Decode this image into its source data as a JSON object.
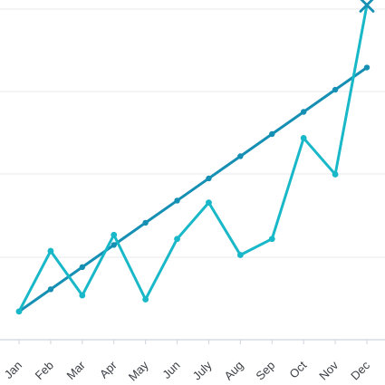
{
  "chart_data": {
    "type": "line",
    "categories": [
      "Jan",
      "Feb",
      "Mar",
      "Apr",
      "May",
      "Jun",
      "July",
      "Aug",
      "Sep",
      "Oct",
      "Nov",
      "Dec"
    ],
    "series": [
      {
        "values": [
          5,
          20,
          9,
          24,
          8,
          23,
          32,
          19,
          23,
          48,
          39,
          81
        ],
        "color": "#18b8c8",
        "marker": "circle",
        "last_marker": "x"
      },
      {
        "values": [
          5,
          10.5,
          16,
          21.5,
          27,
          32.5,
          38,
          43.5,
          49,
          54.5,
          60,
          65.5
        ],
        "color": "#158fb3",
        "marker": "circle"
      }
    ],
    "title": "",
    "xlabel": "",
    "ylabel": "",
    "ylim": [
      -2,
      80
    ],
    "grid": true,
    "legend": "none"
  }
}
